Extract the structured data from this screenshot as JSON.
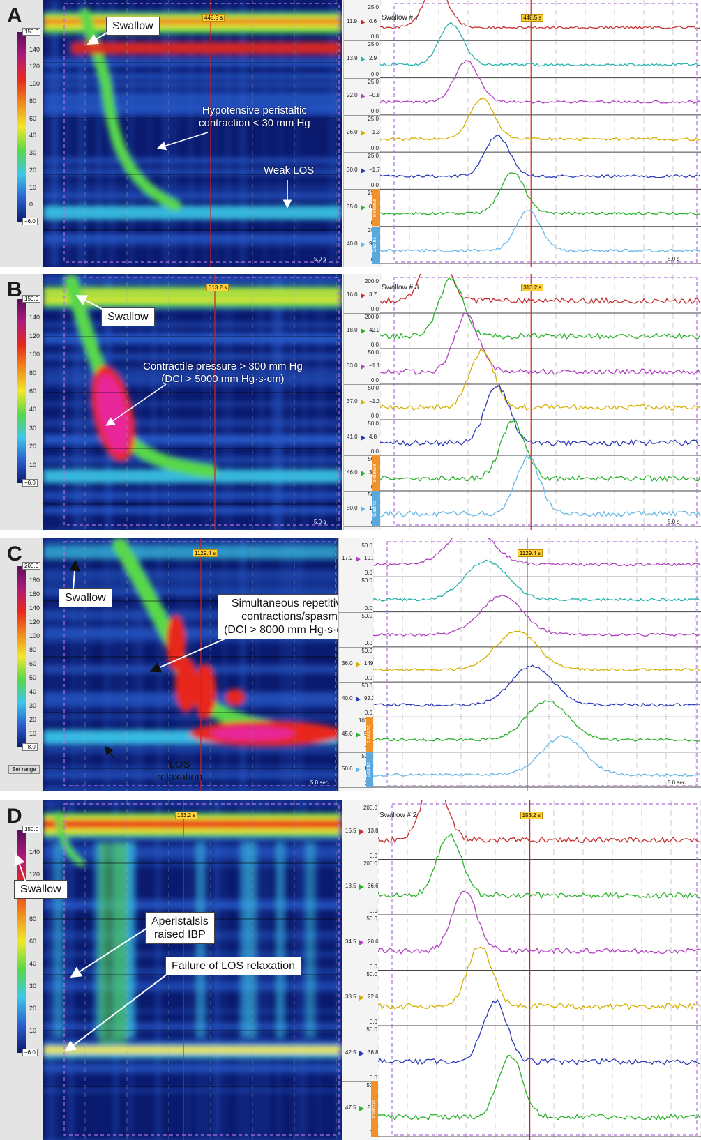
{
  "panels": [
    {
      "letter": "A",
      "colorbar": {
        "max": "150.0",
        "min": "−6.0",
        "ticks": [
          "140",
          "120",
          "100",
          "80",
          "60",
          "40",
          "30",
          "20",
          "10",
          "0"
        ]
      },
      "marker_time": "448.5 s",
      "swallow_label": "Swallow # 7",
      "scale_label": "5.0 s",
      "callouts": [
        {
          "text": "Swallow"
        }
      ],
      "annotations": [
        {
          "text": "Hypotensive peristaltic\ncontraction < 30 mm Hg"
        },
        {
          "text": "Weak LOS"
        }
      ],
      "channels": [
        {
          "pos": "11.9",
          "val": "0.6",
          "range": "25.0",
          "zero": "0.0",
          "color": "#c53030"
        },
        {
          "pos": "13.9",
          "val": "2.9",
          "range": "25.0",
          "zero": "0.0",
          "color": "#20b2aa"
        },
        {
          "pos": "22.0",
          "val": "−0.8",
          "range": "25.0",
          "zero": "0.0",
          "color": "#b040c0"
        },
        {
          "pos": "26.0",
          "val": "−1.3",
          "range": "25.0",
          "zero": "0.0",
          "color": "#d4b000"
        },
        {
          "pos": "30.0",
          "val": "−1.7",
          "range": "25.0",
          "zero": "0.0",
          "color": "#2a3ab8"
        },
        {
          "pos": "35.0",
          "val": "0.5",
          "range": "25.0",
          "zero": "0.0",
          "color": "#2bb12b",
          "tag": "e-sleeve",
          "extra": "30.8"
        },
        {
          "pos": "40.0",
          "val": "9.4",
          "range": "25.0",
          "zero": "0.0",
          "color": "#66b6e8",
          "tag": "Gastric"
        }
      ]
    },
    {
      "letter": "B",
      "colorbar": {
        "max": "150.0",
        "min": "−6.0",
        "ticks": [
          "140",
          "120",
          "100",
          "80",
          "60",
          "40",
          "30",
          "20",
          "10"
        ]
      },
      "marker_time": "313.2 s",
      "swallow_label": "Swallow # 3",
      "scale_label": "5.0 s",
      "callouts": [
        {
          "text": "Swallow"
        }
      ],
      "annotations": [
        {
          "text": "Contractile pressure > 300 mm Hg\n(DCI > 5000 mm Hg·s·cm)"
        }
      ],
      "channels": [
        {
          "pos": "16.0",
          "val": "3.7",
          "range": "200.0",
          "zero": "0.0",
          "color": "#c53030"
        },
        {
          "pos": "18.0",
          "val": "42.0",
          "range": "200.0",
          "zero": "0.0",
          "color": "#2bb12b"
        },
        {
          "pos": "33.0",
          "val": "−1.1",
          "range": "50.0",
          "zero": "0.0",
          "color": "#b040c0"
        },
        {
          "pos": "37.0",
          "val": "−1.3",
          "range": "50.0",
          "zero": "0.0",
          "color": "#d4b000"
        },
        {
          "pos": "41.0",
          "val": "4.8",
          "range": "50.0",
          "zero": "0.0",
          "color": "#2a3ab8"
        },
        {
          "pos": "46.0",
          "val": "31.3",
          "range": "50.0",
          "zero": "0.0",
          "color": "#2bb12b",
          "tag": "e-sleeve",
          "extra": "48.8"
        },
        {
          "pos": "50.0",
          "val": "10.8",
          "range": "50.0",
          "zero": "0.0",
          "color": "#66b6e8",
          "tag": "Gastric"
        }
      ]
    },
    {
      "letter": "C",
      "colorbar": {
        "max": "200.0",
        "min": "−8.0",
        "ticks": [
          "180",
          "160",
          "140",
          "120",
          "100",
          "80",
          "60",
          "50",
          "40",
          "30",
          "20",
          "10"
        ]
      },
      "marker_time": "1129.4 s",
      "swallow_label": "",
      "scale_label": "5.0 sec",
      "set_range": "Set range",
      "callouts": [
        {
          "text": "Swallow"
        },
        {
          "text": "Simultaneous repetitive\ncontractions/spasm\n(DCI > 8000 mm Hg·s·cm)"
        }
      ],
      "annotations": [
        {
          "text": "LOS\nrelaxation"
        }
      ],
      "channels": [
        {
          "pos": "17.2",
          "val": "10.1",
          "range": "50.0",
          "zero": "0.0",
          "color": "#b040c0"
        },
        {
          "pos": "",
          "val": "",
          "range": "50.0",
          "zero": "0.0",
          "color": "#20b2aa"
        },
        {
          "pos": "",
          "val": "",
          "range": "50.0",
          "zero": "0.0",
          "color": "#b040c0"
        },
        {
          "pos": "36.0",
          "val": "149.2",
          "range": "50.0",
          "zero": "0.0",
          "color": "#d4b000"
        },
        {
          "pos": "40.0",
          "val": "92.2",
          "range": "50.0",
          "zero": "0.0",
          "color": "#2a3ab8"
        },
        {
          "pos": "45.0",
          "val": "54.1",
          "range": "100.0",
          "zero": "0.0",
          "color": "#2bb12b",
          "tag": "e-sleeve",
          "extra": "246.5"
        },
        {
          "pos": "50.6",
          "val": "11.5",
          "range": "50.0",
          "zero": "0.0",
          "color": "#66b6e8",
          "tag": "Gastric"
        }
      ]
    },
    {
      "letter": "D",
      "colorbar": {
        "max": "150.0",
        "min": "−6.0",
        "ticks": [
          "140",
          "120",
          "100",
          "80",
          "60",
          "40",
          "30",
          "20",
          "10"
        ]
      },
      "marker_time": "153.2 s",
      "swallow_label": "Swallow # 2",
      "scale_label": "",
      "callouts": [
        {
          "text": "Swallow"
        },
        {
          "text": "Aperistalsis\nraised IBP"
        },
        {
          "text": "Failure of LOS relaxation"
        }
      ],
      "annotations": [],
      "channels": [
        {
          "pos": "16.5",
          "val": "13.8",
          "range": "200.0",
          "zero": "0.0",
          "color": "#c53030"
        },
        {
          "pos": "18.5",
          "val": "36.6",
          "range": "200.0",
          "zero": "0.0",
          "color": "#2bb12b"
        },
        {
          "pos": "34.5",
          "val": "20.6",
          "range": "50.0",
          "zero": "0.0",
          "color": "#b040c0"
        },
        {
          "pos": "38.5",
          "val": "22.6",
          "range": "50.0",
          "zero": "0.0",
          "color": "#d4b000"
        },
        {
          "pos": "42.5",
          "val": "36.8",
          "range": "50.0",
          "zero": "0.0",
          "color": "#2a3ab8"
        },
        {
          "pos": "47.5",
          "val": "57.8",
          "range": "50.0",
          "zero": "0.0",
          "color": "#2bb12b",
          "tag": "e-sleeve",
          "extra": "58.5"
        }
      ]
    }
  ],
  "colors": {
    "heat_dark": "#0a1a6e",
    "heat_blue": "#2a5fd0",
    "heat_cyan": "#3cc8e8",
    "heat_green": "#58d84a",
    "heat_yellow": "#f2e82a",
    "heat_red": "#e8281c",
    "heat_magenta": "#e8289a",
    "marker_red": "#d62020",
    "dashed_purple": "#b070e0"
  }
}
